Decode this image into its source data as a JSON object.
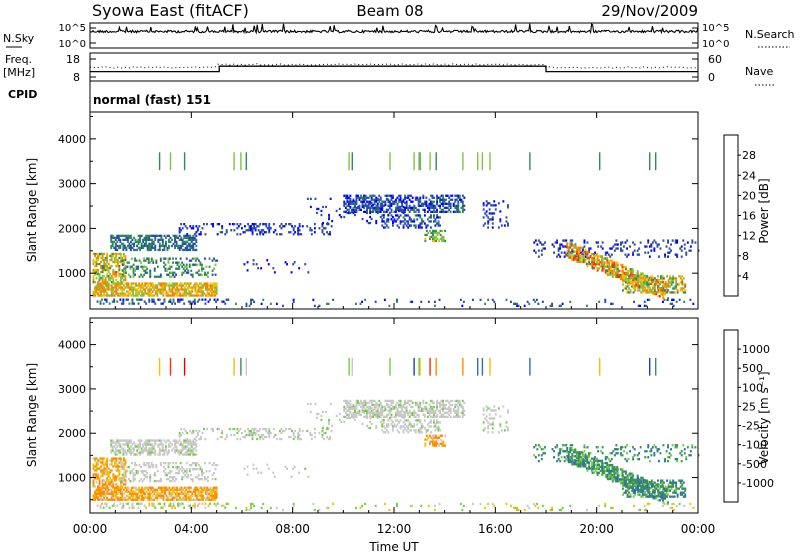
{
  "header": {
    "station": "Syowa East (fitACF)",
    "beam": "Beam 08",
    "date": "29/Nov/2009"
  },
  "panels": {
    "noise": {
      "left_label": "N.Sky",
      "right_label": "N.Search",
      "left_ticks": [
        "10^5",
        "10^0"
      ],
      "right_ticks": [
        "10^5",
        "10^0"
      ]
    },
    "freq": {
      "left_label_1": "Freq.",
      "left_label_2": "[MHz]",
      "right_label": "Nave",
      "left_ticks": [
        "18",
        "8"
      ],
      "right_ticks": [
        "60",
        "0"
      ],
      "freq_steps": [
        {
          "t": 0,
          "mhz": 11.0
        },
        {
          "t": 5.1,
          "mhz": 11.0
        },
        {
          "t": 5.1,
          "mhz": 14.0
        },
        {
          "t": 18.0,
          "mhz": 14.0
        },
        {
          "t": 18.0,
          "mhz": 11.0
        },
        {
          "t": 24,
          "mhz": 11.0
        }
      ]
    },
    "cpid": {
      "label": "CPID",
      "text": "normal (fast) 151"
    }
  },
  "chart_data": [
    {
      "type": "heatmap",
      "name": "power",
      "ylabel": "Slant Range [km]",
      "ylim": [
        200,
        4600
      ],
      "yticks": [
        "1000",
        "2000",
        "3000",
        "4000"
      ],
      "colorbar_label": "Power [dB]",
      "colorbar_ticks": [
        "4",
        "8",
        "12",
        "16",
        "20",
        "24",
        "28"
      ],
      "colorbar_colors": [
        "#0000ff",
        "#2b4da8",
        "#2e8b57",
        "#7fc241",
        "#f0c000",
        "#ff8000",
        "#ff3000",
        "#d80000"
      ]
    },
    {
      "type": "heatmap",
      "name": "velocity",
      "ylabel": "Slant Range [km]",
      "ylim": [
        200,
        4600
      ],
      "yticks": [
        "1000",
        "2000",
        "3000",
        "4000"
      ],
      "colorbar_label": "Velocity [m s⁻¹]",
      "colorbar_ticks": [
        "1000",
        "500",
        "100",
        "25",
        "-25",
        "-100",
        "-500",
        "-1000"
      ],
      "colorbar_colors": [
        "#1a3fb8",
        "#2c6fb0",
        "#3a8e5a",
        "#6fcf3e",
        "#c8c8c8",
        "#f5c000",
        "#ff8c00",
        "#ff3000",
        "#e00000"
      ]
    }
  ],
  "xaxis": {
    "label": "Time UT",
    "ticks": [
      "00:00",
      "04:00",
      "08:00",
      "12:00",
      "16:00",
      "20:00",
      "00:00"
    ]
  }
}
